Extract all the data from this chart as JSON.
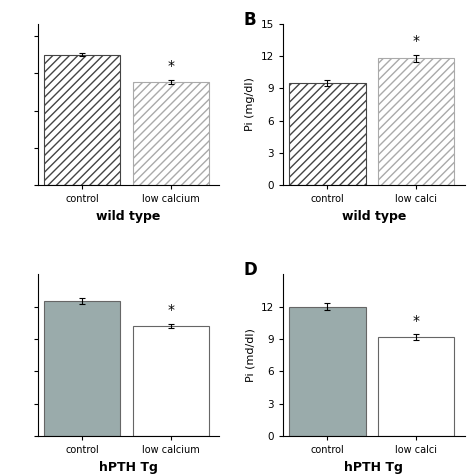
{
  "panels": {
    "A": {
      "title": "wild type",
      "ylabel": "",
      "panel_label": "",
      "categories": [
        "control",
        "low calcium"
      ],
      "values": [
        10.5,
        8.3
      ],
      "errors": [
        0.12,
        0.18
      ],
      "ylim": [
        0,
        13
      ],
      "yticks": [
        0,
        3,
        6,
        9,
        12
      ],
      "show_ytick_labels": false,
      "bar_style": "hatch",
      "hatch_darkness": [
        "dark",
        "light"
      ],
      "star_bar": 1,
      "show_panel_label": false
    },
    "B": {
      "title": "wild type",
      "ylabel": "Pi (mg/dl)",
      "panel_label": "B",
      "categories": [
        "control",
        "low calci"
      ],
      "values": [
        9.5,
        11.8
      ],
      "errors": [
        0.28,
        0.32
      ],
      "ylim": [
        0,
        15
      ],
      "yticks": [
        0,
        3,
        6,
        9,
        12,
        15
      ],
      "show_ytick_labels": true,
      "bar_style": "hatch",
      "hatch_darkness": [
        "dark",
        "light"
      ],
      "star_bar": 1,
      "show_panel_label": true
    },
    "C": {
      "title": "hPTH Tg",
      "ylabel": "",
      "panel_label": "",
      "categories": [
        "control",
        "low calcium"
      ],
      "values": [
        12.5,
        10.2
      ],
      "errors": [
        0.28,
        0.22
      ],
      "ylim": [
        0,
        15
      ],
      "yticks": [
        0,
        3,
        6,
        9,
        12
      ],
      "show_ytick_labels": false,
      "bar_style": "solid",
      "colors": [
        "#9aabab",
        "white"
      ],
      "star_bar": 1,
      "show_panel_label": false
    },
    "D": {
      "title": "hPTH Tg",
      "ylabel": "Pi (md/dl)",
      "panel_label": "D",
      "categories": [
        "control",
        "low calci"
      ],
      "values": [
        12.0,
        9.2
      ],
      "errors": [
        0.32,
        0.25
      ],
      "ylim": [
        0,
        15
      ],
      "yticks": [
        0,
        3,
        6,
        9,
        12
      ],
      "show_ytick_labels": true,
      "bar_style": "solid",
      "colors": [
        "#9aabab",
        "white"
      ],
      "star_bar": 1,
      "show_panel_label": true
    }
  },
  "background_color": "#ffffff",
  "bar_width": 0.6,
  "x_positions": [
    0.3,
    1.0
  ]
}
